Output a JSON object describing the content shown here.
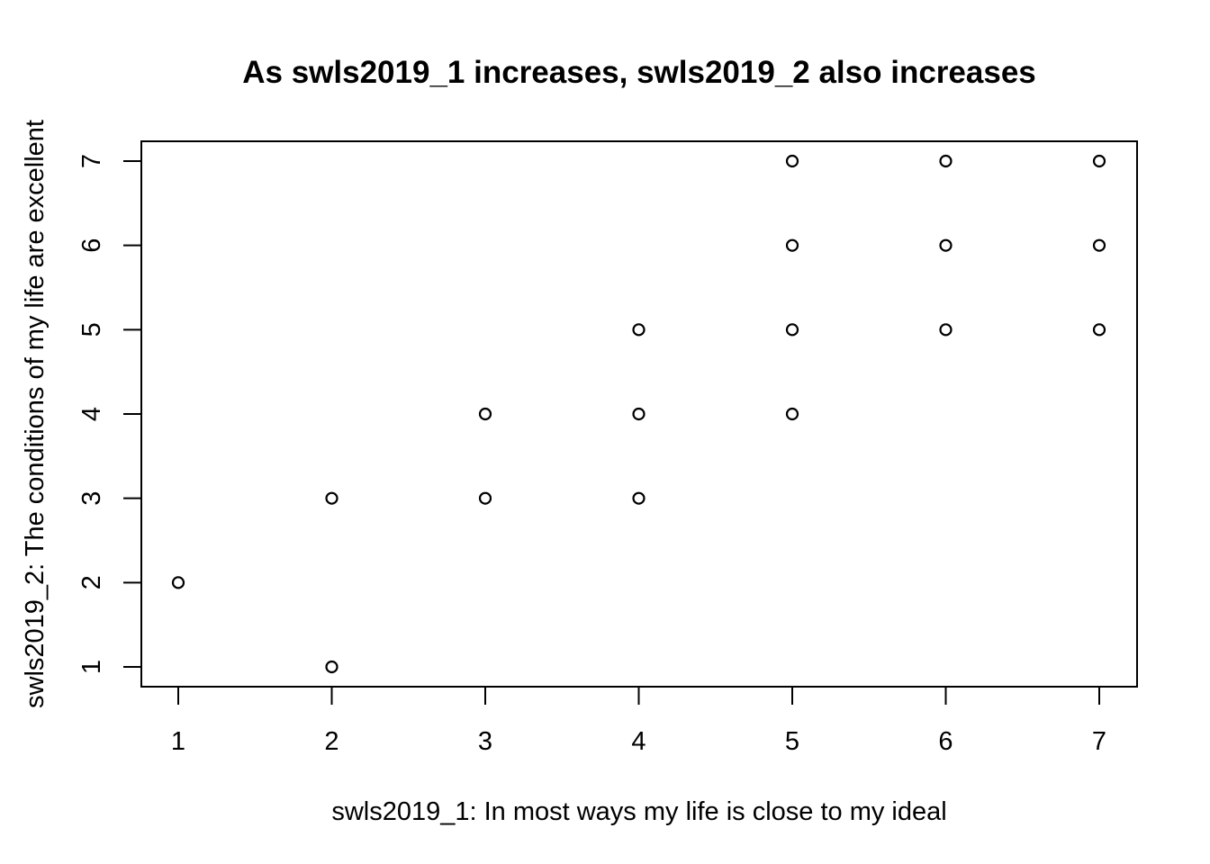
{
  "chart_data": {
    "type": "scatter",
    "title": "As swls2019_1 increases, swls2019_2 also increases",
    "xlabel": "swls2019_1: In most ways my life is close to my ideal",
    "ylabel": "swls2019_2: The conditions of my life are excellent",
    "xlim": [
      1,
      7
    ],
    "ylim": [
      1,
      7
    ],
    "x_ticks": [
      1,
      2,
      3,
      4,
      5,
      6,
      7
    ],
    "y_ticks": [
      1,
      2,
      3,
      4,
      5,
      6,
      7
    ],
    "grid": false,
    "marker": "open-circle",
    "marker_color": "#000000",
    "points": [
      {
        "x": 1,
        "y": 2
      },
      {
        "x": 2,
        "y": 1
      },
      {
        "x": 2,
        "y": 3
      },
      {
        "x": 3,
        "y": 3
      },
      {
        "x": 3,
        "y": 4
      },
      {
        "x": 4,
        "y": 3
      },
      {
        "x": 4,
        "y": 4
      },
      {
        "x": 4,
        "y": 5
      },
      {
        "x": 5,
        "y": 4
      },
      {
        "x": 5,
        "y": 5
      },
      {
        "x": 5,
        "y": 6
      },
      {
        "x": 5,
        "y": 7
      },
      {
        "x": 6,
        "y": 5
      },
      {
        "x": 6,
        "y": 6
      },
      {
        "x": 6,
        "y": 7
      },
      {
        "x": 7,
        "y": 5
      },
      {
        "x": 7,
        "y": 6
      },
      {
        "x": 7,
        "y": 7
      }
    ]
  }
}
